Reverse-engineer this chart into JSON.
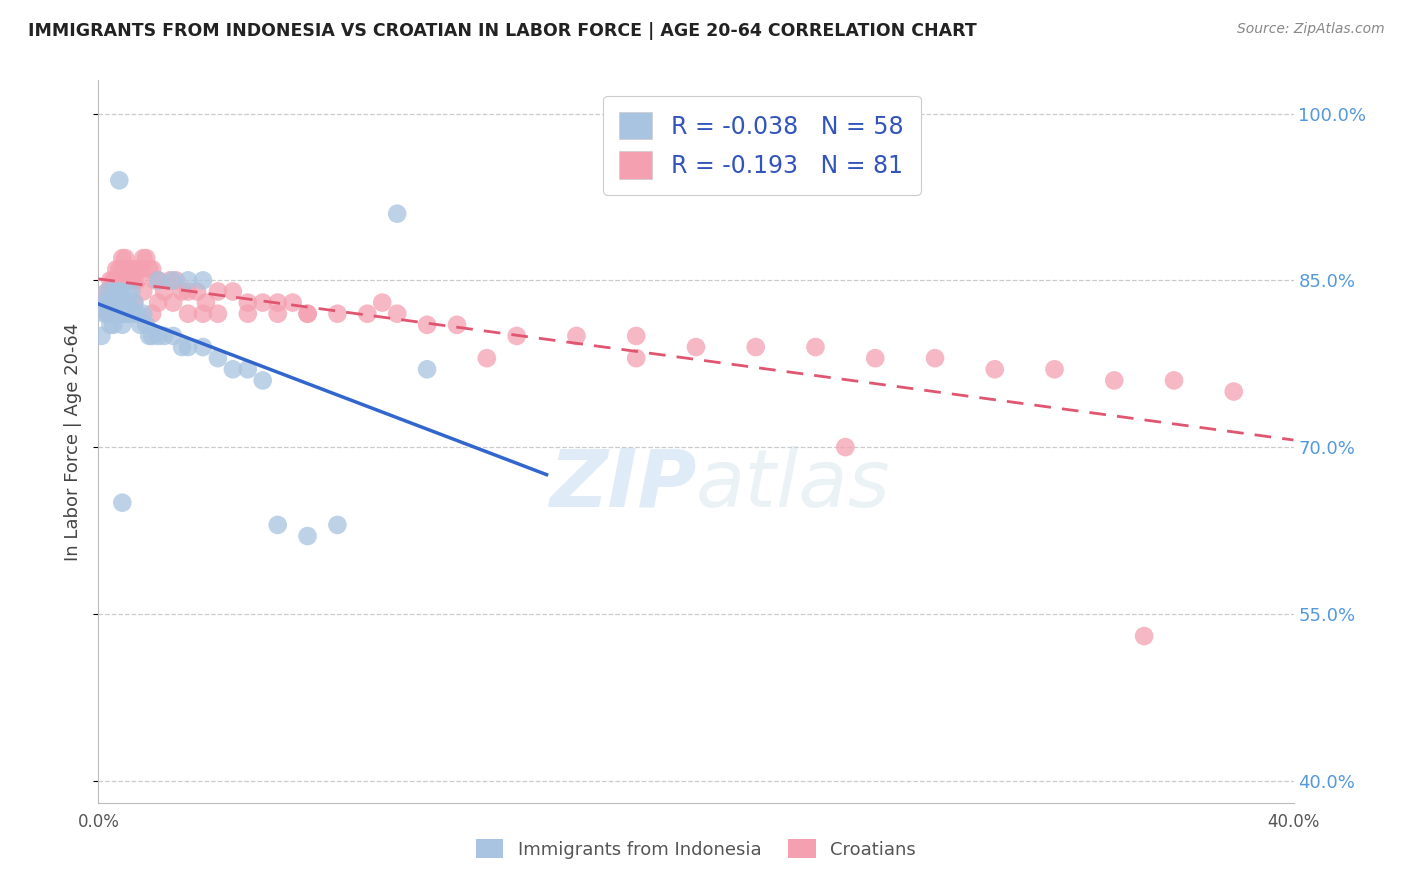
{
  "title": "IMMIGRANTS FROM INDONESIA VS CROATIAN IN LABOR FORCE | AGE 20-64 CORRELATION CHART",
  "source": "Source: ZipAtlas.com",
  "ylabel": "In Labor Force | Age 20-64",
  "xlim": [
    0.0,
    0.4
  ],
  "ylim": [
    0.38,
    1.03
  ],
  "yticks": [
    0.4,
    0.55,
    0.7,
    0.85,
    1.0
  ],
  "ytick_labels": [
    "40.0%",
    "55.0%",
    "70.0%",
    "85.0%",
    "100.0%"
  ],
  "xticks": [
    0.0,
    0.05,
    0.1,
    0.15,
    0.2,
    0.25,
    0.3,
    0.35,
    0.4
  ],
  "xtick_labels": [
    "0.0%",
    "",
    "",
    "",
    "",
    "",
    "",
    "",
    "40.0%"
  ],
  "indonesia_R": -0.038,
  "indonesia_N": 58,
  "croatian_R": -0.193,
  "croatian_N": 81,
  "indonesia_color": "#a8c4e0",
  "croatian_color": "#f4a0b0",
  "indonesia_line_color": "#3366cc",
  "croatian_line_color": "#e05570",
  "indonesia_x": [
    0.001,
    0.002,
    0.002,
    0.003,
    0.003,
    0.003,
    0.004,
    0.004,
    0.004,
    0.005,
    0.005,
    0.005,
    0.005,
    0.006,
    0.006,
    0.006,
    0.007,
    0.007,
    0.007,
    0.008,
    0.008,
    0.008,
    0.009,
    0.009,
    0.009,
    0.01,
    0.01,
    0.011,
    0.011,
    0.012,
    0.012,
    0.013,
    0.014,
    0.015,
    0.016,
    0.017,
    0.018,
    0.02,
    0.022,
    0.025,
    0.028,
    0.03,
    0.035,
    0.04,
    0.045,
    0.05,
    0.055,
    0.06,
    0.07,
    0.08,
    0.1,
    0.11,
    0.02,
    0.025,
    0.03,
    0.035,
    0.007,
    0.008
  ],
  "indonesia_y": [
    0.8,
    0.83,
    0.82,
    0.84,
    0.83,
    0.82,
    0.83,
    0.82,
    0.81,
    0.84,
    0.83,
    0.82,
    0.81,
    0.84,
    0.83,
    0.82,
    0.84,
    0.83,
    0.82,
    0.83,
    0.82,
    0.81,
    0.84,
    0.83,
    0.82,
    0.83,
    0.82,
    0.84,
    0.82,
    0.83,
    0.82,
    0.82,
    0.81,
    0.82,
    0.81,
    0.8,
    0.8,
    0.8,
    0.8,
    0.8,
    0.79,
    0.79,
    0.79,
    0.78,
    0.77,
    0.77,
    0.76,
    0.63,
    0.62,
    0.63,
    0.91,
    0.77,
    0.85,
    0.85,
    0.85,
    0.85,
    0.94,
    0.65
  ],
  "croatian_x": [
    0.002,
    0.003,
    0.003,
    0.004,
    0.004,
    0.005,
    0.005,
    0.005,
    0.006,
    0.006,
    0.006,
    0.007,
    0.007,
    0.007,
    0.008,
    0.008,
    0.008,
    0.009,
    0.009,
    0.01,
    0.01,
    0.011,
    0.011,
    0.012,
    0.012,
    0.013,
    0.014,
    0.015,
    0.016,
    0.017,
    0.018,
    0.019,
    0.02,
    0.022,
    0.024,
    0.026,
    0.028,
    0.03,
    0.033,
    0.036,
    0.04,
    0.045,
    0.05,
    0.055,
    0.06,
    0.065,
    0.07,
    0.08,
    0.09,
    0.1,
    0.11,
    0.12,
    0.14,
    0.16,
    0.18,
    0.2,
    0.22,
    0.24,
    0.26,
    0.28,
    0.3,
    0.32,
    0.34,
    0.36,
    0.38,
    0.012,
    0.015,
    0.018,
    0.02,
    0.025,
    0.03,
    0.035,
    0.04,
    0.05,
    0.06,
    0.07,
    0.095,
    0.13,
    0.18,
    0.25,
    0.35
  ],
  "croatian_y": [
    0.83,
    0.84,
    0.82,
    0.85,
    0.84,
    0.85,
    0.84,
    0.83,
    0.86,
    0.85,
    0.84,
    0.86,
    0.85,
    0.84,
    0.87,
    0.86,
    0.85,
    0.87,
    0.86,
    0.86,
    0.85,
    0.86,
    0.85,
    0.86,
    0.85,
    0.85,
    0.86,
    0.87,
    0.87,
    0.86,
    0.86,
    0.85,
    0.85,
    0.84,
    0.85,
    0.85,
    0.84,
    0.84,
    0.84,
    0.83,
    0.84,
    0.84,
    0.83,
    0.83,
    0.83,
    0.83,
    0.82,
    0.82,
    0.82,
    0.82,
    0.81,
    0.81,
    0.8,
    0.8,
    0.8,
    0.79,
    0.79,
    0.79,
    0.78,
    0.78,
    0.77,
    0.77,
    0.76,
    0.76,
    0.75,
    0.83,
    0.84,
    0.82,
    0.83,
    0.83,
    0.82,
    0.82,
    0.82,
    0.82,
    0.82,
    0.82,
    0.83,
    0.78,
    0.78,
    0.7,
    0.53
  ]
}
